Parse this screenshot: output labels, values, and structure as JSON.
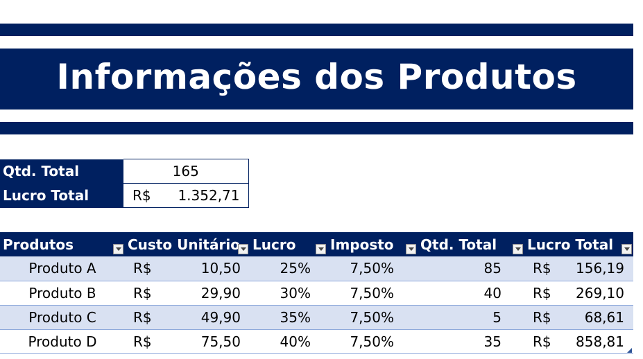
{
  "title": "Informações dos Produtos",
  "summary": {
    "qtd_label": "Qtd. Total",
    "qtd_value": "165",
    "lucro_label": "Lucro Total",
    "lucro_currency": "R$",
    "lucro_value": "1.352,71"
  },
  "table": {
    "headers": [
      "Produtos",
      "Custo Unitário",
      "Lucro",
      "Imposto",
      "Qtd. Total",
      "Lucro Total"
    ],
    "rows": [
      {
        "produto": "Produto A",
        "custo_currency": "R$",
        "custo": "10,50",
        "lucro": "25%",
        "imposto": "7,50%",
        "qtd": "85",
        "lt_currency": "R$",
        "lucro_total": "156,19"
      },
      {
        "produto": "Produto B",
        "custo_currency": "R$",
        "custo": "29,90",
        "lucro": "30%",
        "imposto": "7,50%",
        "qtd": "40",
        "lt_currency": "R$",
        "lucro_total": "269,10"
      },
      {
        "produto": "Produto C",
        "custo_currency": "R$",
        "custo": "49,90",
        "lucro": "35%",
        "imposto": "7,50%",
        "qtd": "5",
        "lt_currency": "R$",
        "lucro_total": "68,61"
      },
      {
        "produto": "Produto D",
        "custo_currency": "R$",
        "custo": "75,50",
        "lucro": "40%",
        "imposto": "7,50%",
        "qtd": "35",
        "lt_currency": "R$",
        "lucro_total": "858,81"
      }
    ]
  },
  "colors": {
    "header_navy": "#002060",
    "row_band": "#d9e1f2",
    "row_border": "#8ea9db"
  }
}
